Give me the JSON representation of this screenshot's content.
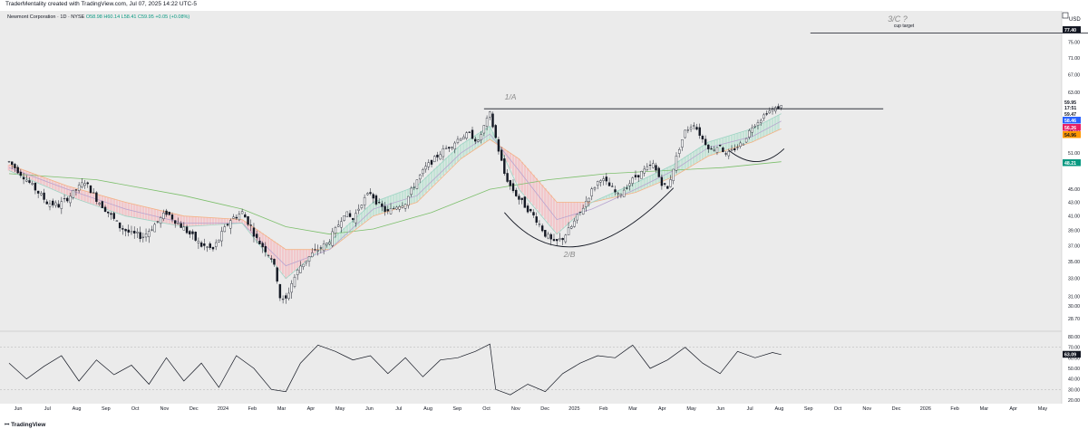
{
  "attribution": "TraderMentality created with TradingView.com, Jul 07, 2025 14:22 UTC-5",
  "brand": "TradingView",
  "legend": {
    "symbol": "Newmont Corporation · 1D · NYSE",
    "open": "O58.98",
    "high": "H60.14",
    "low": "L58.41",
    "close": "C59.95",
    "change": "+0.05 (+0.08%)"
  },
  "annotations": {
    "wave1": "1/A",
    "wave2": "2/B",
    "wave3": "3/C ?",
    "target": "cup target"
  },
  "colors": {
    "up": "#089981",
    "down": "#f23645",
    "ma_fast": "#9fd4c5",
    "ma_mid": "#b7a3cf",
    "ma_slow": "#f4b183",
    "ma_long": "#7cbf6b",
    "pane_bg": "#ebebeb"
  },
  "chart_data": [
    {
      "type": "candlestick",
      "ylim": [
        28,
        80
      ],
      "currency": "USD",
      "ylabel": "USD",
      "x_ticks": [
        "Jun",
        "Jul",
        "Aug",
        "Sep",
        "Oct",
        "Nov",
        "Dec",
        "2024",
        "Feb",
        "Mar",
        "Apr",
        "May",
        "Jun",
        "Jul",
        "Aug",
        "Sep",
        "Oct",
        "Nov",
        "Dec",
        "2025",
        "Feb",
        "Mar",
        "Apr",
        "May",
        "Jun",
        "Jul",
        "Aug",
        "Sep",
        "Oct",
        "Nov",
        "Dec",
        "2026",
        "Feb",
        "Mar",
        "Apr",
        "May"
      ],
      "y_ticks": [
        28.7,
        30.0,
        31.0,
        33.0,
        35.0,
        37.0,
        39.0,
        41.0,
        43.0,
        45.0,
        51.0,
        55.0,
        59.0,
        63.0,
        67.0,
        71.0,
        75.0
      ],
      "price_tags": [
        {
          "value": "77.40",
          "color": "#131722"
        },
        {
          "value": "59.95",
          "color": "#ffffff"
        },
        {
          "value": "17:51",
          "color": "#ffffff"
        },
        {
          "value": "59.47",
          "color": "#ffffff"
        },
        {
          "value": "58.46",
          "color": "#2962ff"
        },
        {
          "value": "56.26",
          "color": "#e91e63"
        },
        {
          "value": "54.96",
          "color": "#ff9800"
        },
        {
          "value": "48.21",
          "color": "#089981"
        }
      ],
      "series": [
        {
          "name": "price",
          "points": [
            [
              0,
              49.5
            ],
            [
              4,
              47.5
            ],
            [
              9,
              45.0
            ],
            [
              13,
              43.0
            ],
            [
              17,
              42.5
            ],
            [
              21,
              44.0
            ],
            [
              26,
              46.2
            ],
            [
              30,
              43.5
            ],
            [
              34,
              41.5
            ],
            [
              38,
              39.5
            ],
            [
              42,
              38.5
            ],
            [
              46,
              38.2
            ],
            [
              50,
              39.8
            ],
            [
              54,
              41.5
            ],
            [
              58,
              40.0
            ],
            [
              62,
              38.5
            ],
            [
              66,
              37.0
            ],
            [
              70,
              36.5
            ],
            [
              73,
              38.5
            ],
            [
              76,
              40.5
            ],
            [
              80,
              41.5
            ],
            [
              83,
              39.5
            ],
            [
              85,
              37.8
            ],
            [
              88,
              36.5
            ],
            [
              90,
              35.5
            ],
            [
              92,
              33.0
            ],
            [
              93,
              31.0
            ],
            [
              94.5,
              30.2
            ],
            [
              97,
              32.5
            ],
            [
              100,
              34.5
            ],
            [
              103,
              35.6
            ],
            [
              106,
              36.5
            ],
            [
              109,
              37.2
            ],
            [
              112,
              39.0
            ],
            [
              115,
              41.5
            ],
            [
              118,
              40.5
            ],
            [
              121,
              43.0
            ],
            [
              124,
              44.5
            ],
            [
              127,
              42.5
            ],
            [
              130,
              41.5
            ],
            [
              133,
              42.5
            ],
            [
              136,
              43.0
            ],
            [
              140,
              46.5
            ],
            [
              143,
              48.5
            ],
            [
              146,
              50.0
            ],
            [
              149,
              51.5
            ],
            [
              152,
              52.5
            ],
            [
              155,
              54.0
            ],
            [
              158,
              54.5
            ],
            [
              161,
              53.0
            ],
            [
              163,
              56.0
            ],
            [
              165,
              58.5
            ],
            [
              166,
              56.0
            ],
            [
              168,
              51.5
            ],
            [
              170,
              47.5
            ],
            [
              172,
              45.5
            ],
            [
              175,
              43.5
            ],
            [
              178,
              42.0
            ],
            [
              181,
              40.5
            ],
            [
              184,
              38.5
            ],
            [
              187,
              37.2
            ],
            [
              190,
              38.0
            ],
            [
              193,
              39.5
            ],
            [
              196,
              41.5
            ],
            [
              199,
              44.0
            ],
            [
              201,
              45.5
            ],
            [
              203,
              46.8
            ],
            [
              206,
              45.5
            ],
            [
              209,
              44.0
            ],
            [
              212,
              45.5
            ],
            [
              215,
              47.0
            ],
            [
              218,
              48.0
            ],
            [
              221,
              49.0
            ],
            [
              224,
              46.0
            ],
            [
              226,
              45.0
            ],
            [
              228,
              48.5
            ],
            [
              230,
              52.0
            ],
            [
              232,
              55.0
            ],
            [
              235,
              56.5
            ],
            [
              238,
              53.5
            ],
            [
              241,
              51.5
            ],
            [
              244,
              52.5
            ],
            [
              246,
              50.5
            ],
            [
              249,
              51.8
            ],
            [
              252,
              53.0
            ],
            [
              255,
              56.0
            ],
            [
              258,
              57.5
            ],
            [
              260,
              58.8
            ],
            [
              263,
              59.5
            ],
            [
              265,
              60.0
            ]
          ]
        },
        {
          "name": "ma_fast",
          "points": [
            [
              0,
              48.0
            ],
            [
              20,
              44.0
            ],
            [
              40,
              41.0
            ],
            [
              60,
              39.5
            ],
            [
              80,
              40.0
            ],
            [
              95,
              33.0
            ],
            [
              110,
              37.5
            ],
            [
              125,
              43.0
            ],
            [
              140,
              45.5
            ],
            [
              155,
              52.5
            ],
            [
              165,
              56.0
            ],
            [
              175,
              45.0
            ],
            [
              188,
              38.5
            ],
            [
              200,
              43.0
            ],
            [
              215,
              46.0
            ],
            [
              228,
              49.0
            ],
            [
              240,
              53.0
            ],
            [
              255,
              55.5
            ],
            [
              265,
              58.5
            ]
          ]
        },
        {
          "name": "ma_mid",
          "points": [
            [
              0,
              48.5
            ],
            [
              20,
              45.0
            ],
            [
              40,
              42.0
            ],
            [
              60,
              40.0
            ],
            [
              80,
              40.0
            ],
            [
              95,
              34.5
            ],
            [
              110,
              36.5
            ],
            [
              125,
              42.0
            ],
            [
              140,
              44.0
            ],
            [
              155,
              51.0
            ],
            [
              165,
              54.5
            ],
            [
              175,
              48.0
            ],
            [
              188,
              40.5
            ],
            [
              200,
              42.0
            ],
            [
              215,
              45.0
            ],
            [
              228,
              48.0
            ],
            [
              240,
              52.0
            ],
            [
              255,
              54.0
            ],
            [
              265,
              57.0
            ]
          ]
        },
        {
          "name": "ma_slow",
          "points": [
            [
              0,
              49.0
            ],
            [
              20,
              45.5
            ],
            [
              40,
              43.0
            ],
            [
              60,
              41.0
            ],
            [
              80,
              40.5
            ],
            [
              95,
              36.5
            ],
            [
              110,
              36.5
            ],
            [
              125,
              41.0
            ],
            [
              140,
              43.0
            ],
            [
              155,
              50.0
            ],
            [
              165,
              53.5
            ],
            [
              175,
              50.0
            ],
            [
              188,
              43.0
            ],
            [
              200,
              43.0
            ],
            [
              215,
              44.5
            ],
            [
              228,
              47.0
            ],
            [
              240,
              50.5
            ],
            [
              255,
              53.0
            ],
            [
              265,
              55.5
            ]
          ]
        },
        {
          "name": "ma_long",
          "points": [
            [
              0,
              47.5
            ],
            [
              30,
              46.5
            ],
            [
              60,
              44.0
            ],
            [
              80,
              42.0
            ],
            [
              95,
              39.5
            ],
            [
              110,
              38.5
            ],
            [
              125,
              39.2
            ],
            [
              145,
              41.5
            ],
            [
              165,
              45.0
            ],
            [
              185,
              46.5
            ],
            [
              205,
              47.5
            ],
            [
              225,
              48.0
            ],
            [
              245,
              48.5
            ],
            [
              265,
              49.5
            ]
          ]
        }
      ],
      "levels": [
        {
          "name": "neckline",
          "value": 59.5,
          "from": 163,
          "to": 300
        },
        {
          "name": "cup target",
          "value": 77.4,
          "from": 275,
          "to": 388
        }
      ]
    },
    {
      "type": "line",
      "name": "oscillator",
      "ylim": [
        20,
        80
      ],
      "y_ticks": [
        20.0,
        30.0,
        40.0,
        50.0,
        60.0,
        70.0,
        80.0
      ],
      "last_value": "63.09",
      "x": [
        0,
        6,
        12,
        18,
        24,
        30,
        36,
        42,
        48,
        54,
        60,
        66,
        72,
        78,
        84,
        90,
        95,
        100,
        106,
        112,
        118,
        124,
        130,
        136,
        142,
        148,
        154,
        160,
        165,
        167,
        172,
        178,
        184,
        190,
        196,
        202,
        208,
        214,
        220,
        226,
        232,
        238,
        244,
        250,
        256,
        262,
        265
      ],
      "values": [
        55,
        40,
        52,
        62,
        38,
        58,
        44,
        53,
        35,
        60,
        38,
        55,
        32,
        62,
        50,
        30,
        28,
        55,
        72,
        66,
        58,
        62,
        45,
        60,
        42,
        58,
        60,
        66,
        73,
        30,
        25,
        35,
        28,
        45,
        55,
        62,
        60,
        72,
        50,
        58,
        70,
        55,
        45,
        66,
        60,
        65,
        63
      ]
    }
  ]
}
